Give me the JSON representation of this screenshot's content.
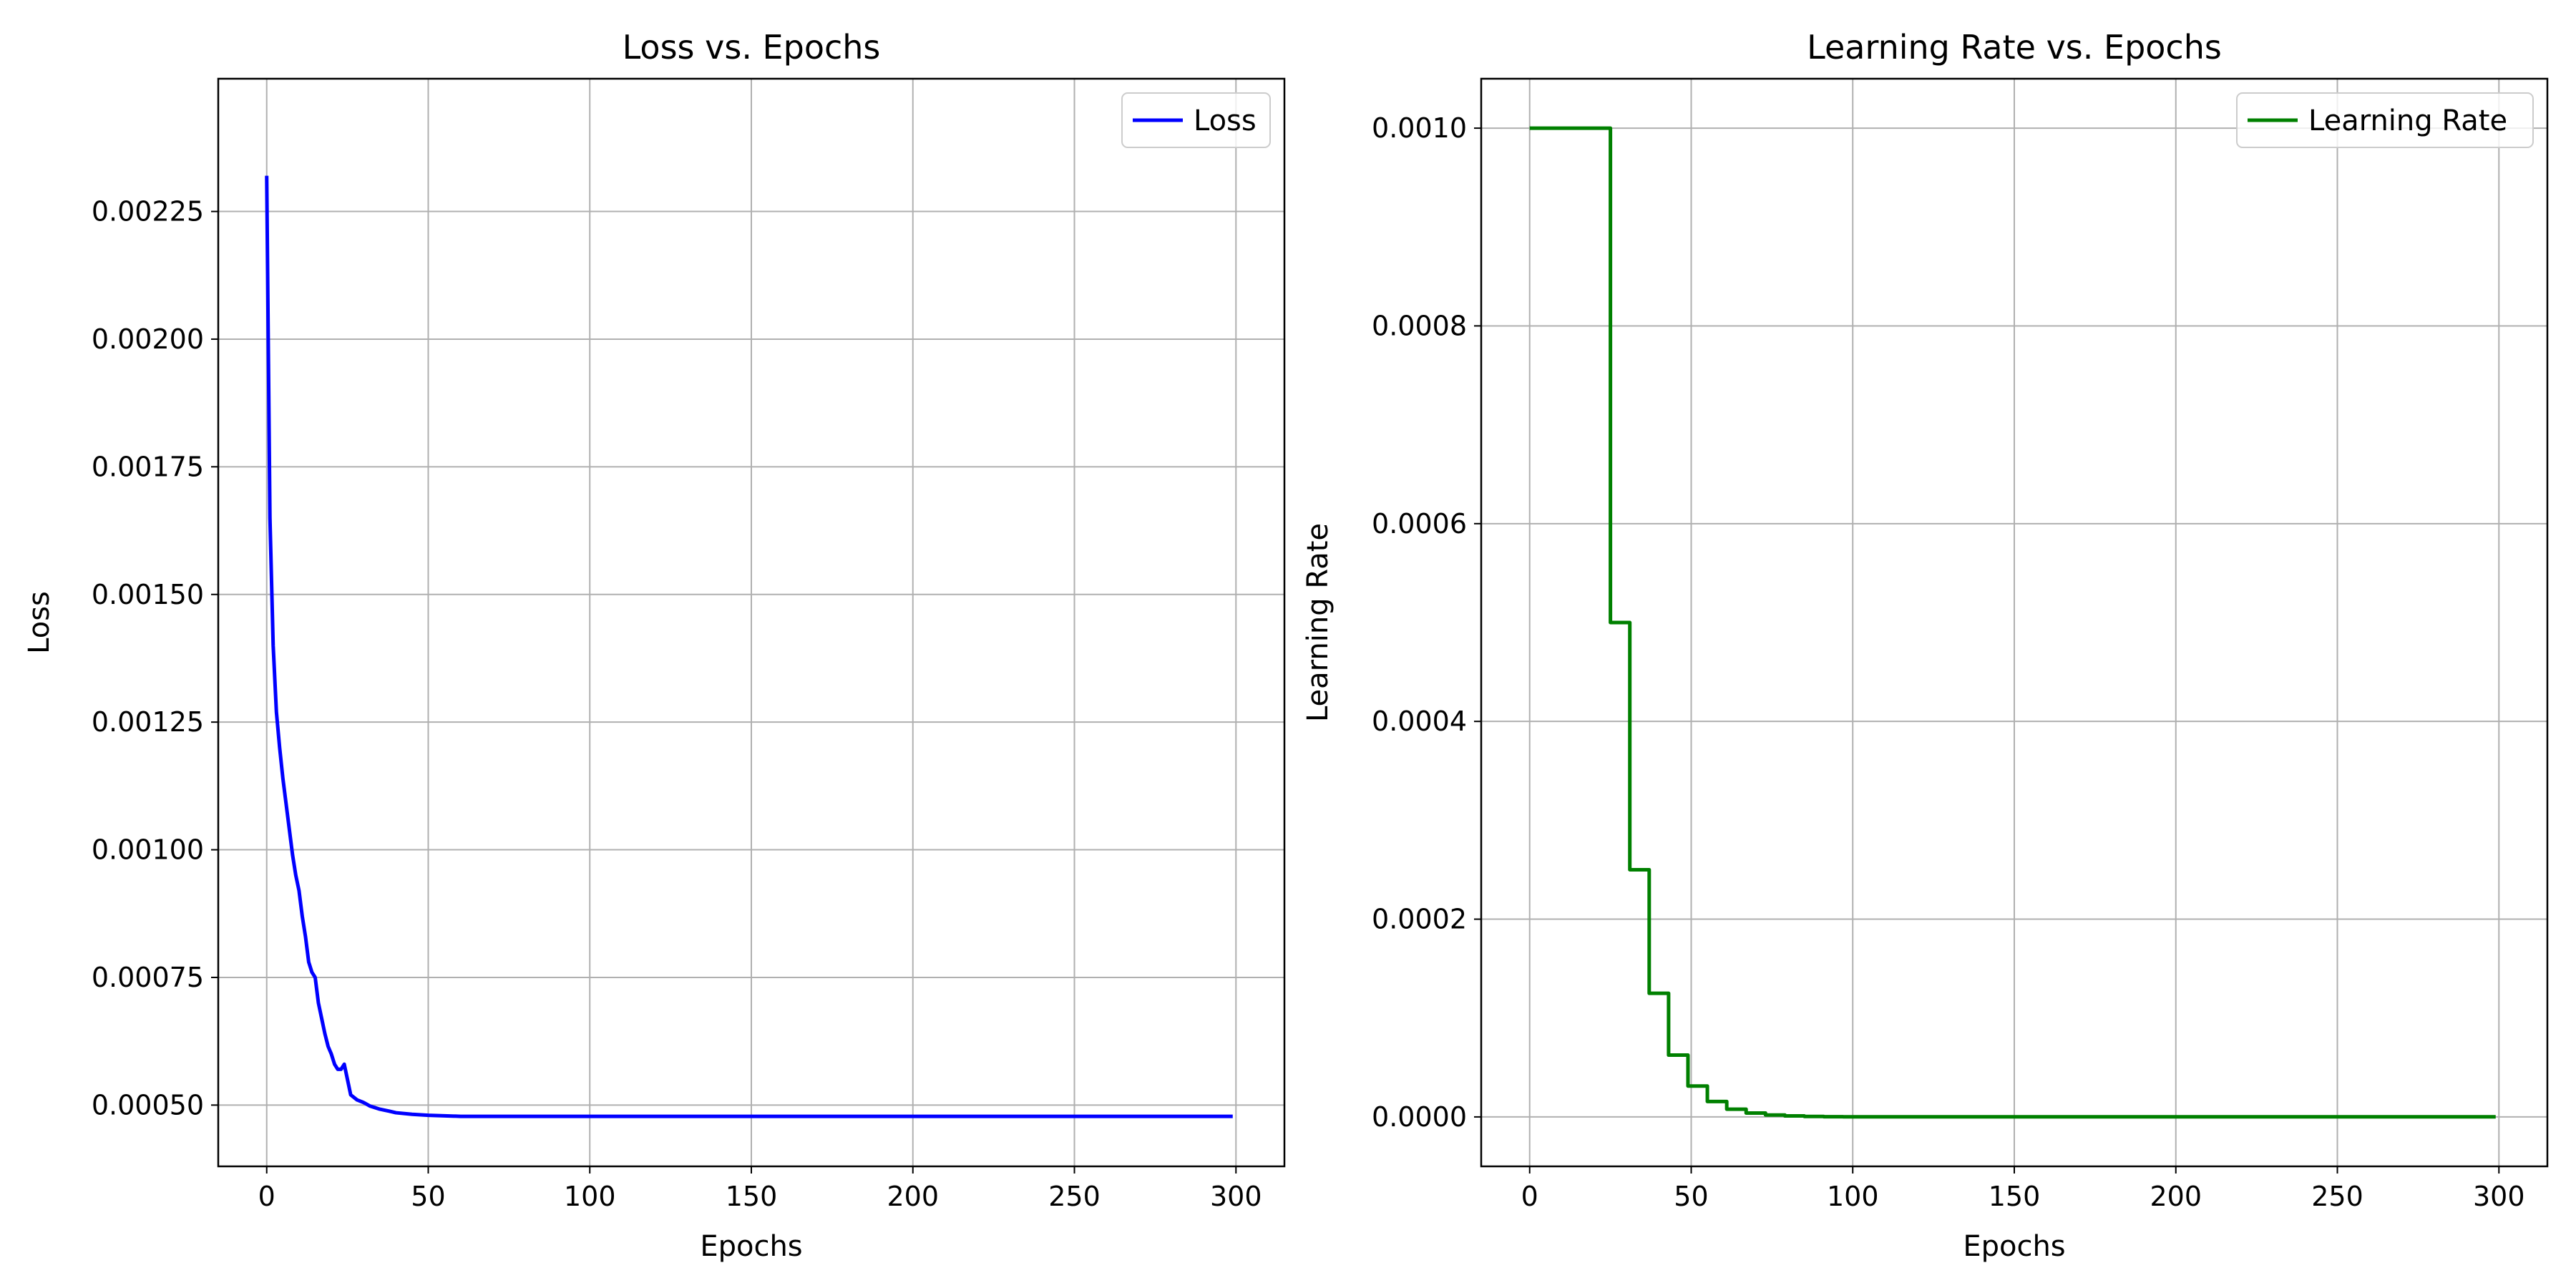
{
  "chart_data": [
    {
      "type": "line",
      "title": "Loss vs. Epochs",
      "xlabel": "Epochs",
      "ylabel": "Loss",
      "xlim": [
        -15,
        315
      ],
      "ylim": [
        0.00038,
        0.00251
      ],
      "xticks": [
        0,
        50,
        100,
        150,
        200,
        250,
        300
      ],
      "xtick_labels": [
        "0",
        "50",
        "100",
        "150",
        "200",
        "250",
        "300"
      ],
      "yticks": [
        0.0005,
        0.00075,
        0.001,
        0.00125,
        0.0015,
        0.00175,
        0.002,
        0.00225
      ],
      "ytick_labels": [
        "0.00050",
        "0.00075",
        "0.00100",
        "0.00125",
        "0.00150",
        "0.00175",
        "0.00200",
        "0.00225"
      ],
      "grid": true,
      "legend": "top-right",
      "series": [
        {
          "name": "Loss",
          "color": "#0000ff",
          "step": false,
          "x": [
            0,
            1,
            2,
            3,
            4,
            5,
            6,
            7,
            8,
            9,
            10,
            11,
            12,
            13,
            14,
            15,
            16,
            17,
            18,
            19,
            20,
            21,
            22,
            23,
            24,
            25,
            26,
            28,
            30,
            32,
            35,
            38,
            40,
            45,
            50,
            55,
            60,
            70,
            80,
            100,
            150,
            200,
            250,
            299
          ],
          "y": [
            0.00232,
            0.00165,
            0.0014,
            0.00127,
            0.0012,
            0.00114,
            0.00109,
            0.00104,
            0.00099,
            0.00095,
            0.00092,
            0.00087,
            0.00083,
            0.00078,
            0.00076,
            0.00075,
            0.0007,
            0.00067,
            0.00064,
            0.000615,
            0.0006,
            0.00058,
            0.00057,
            0.00057,
            0.00058,
            0.00055,
            0.00052,
            0.00051,
            0.000505,
            0.000498,
            0.000492,
            0.000488,
            0.000485,
            0.000482,
            0.00048,
            0.000479,
            0.000478,
            0.000478,
            0.000478,
            0.000478,
            0.000478,
            0.000478,
            0.000478,
            0.000478
          ]
        }
      ]
    },
    {
      "type": "line",
      "title": "Learning Rate vs. Epochs",
      "xlabel": "Epochs",
      "ylabel": "Learning Rate",
      "xlim": [
        -15,
        315
      ],
      "ylim": [
        -5e-05,
        0.00105
      ],
      "xticks": [
        0,
        50,
        100,
        150,
        200,
        250,
        300
      ],
      "xtick_labels": [
        "0",
        "50",
        "100",
        "150",
        "200",
        "250",
        "300"
      ],
      "yticks": [
        0,
        0.0002,
        0.0004,
        0.0006,
        0.0008,
        0.001
      ],
      "ytick_labels": [
        "0.0000",
        "0.0002",
        "0.0004",
        "0.0006",
        "0.0008",
        "0.0010"
      ],
      "grid": true,
      "legend": "top-right",
      "series": [
        {
          "name": "Learning Rate",
          "color": "#008000",
          "step": true,
          "x": [
            0,
            25,
            31,
            37,
            43,
            49,
            55,
            61,
            67,
            73,
            79,
            85,
            91,
            97,
            299
          ],
          "y": [
            0.001,
            0.0005,
            0.00025,
            0.000125,
            6.25e-05,
            3.125e-05,
            1.56e-05,
            7.8e-06,
            3.9e-06,
            1.95e-06,
            9.8e-07,
            4.9e-07,
            2.4e-07,
            1.2e-07,
            1.2e-07
          ]
        }
      ]
    }
  ]
}
